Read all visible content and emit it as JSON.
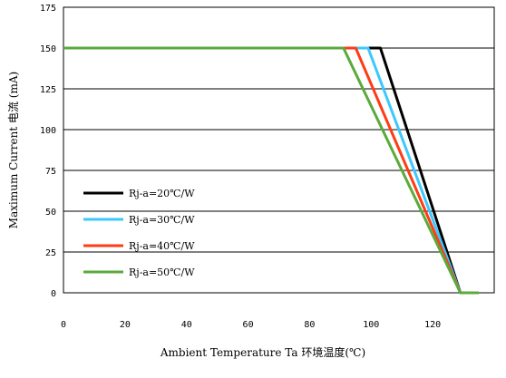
{
  "chart_data": {
    "type": "line",
    "xlabel": "Ambient Temperature Ta 环境温度(℃)",
    "ylabel": "Maximum Current 电流 (mA)",
    "xlim": [
      0,
      140
    ],
    "ylim": [
      0,
      175
    ],
    "xticks": [
      0,
      20,
      40,
      60,
      80,
      100,
      120
    ],
    "yticks": [
      0,
      25,
      50,
      75,
      100,
      125,
      150,
      175
    ],
    "grid": "horizontal",
    "legend_position": "lower-left",
    "series": [
      {
        "name": "Rj-a=20℃/W",
        "color": "#000000",
        "points": [
          [
            0,
            150
          ],
          [
            103,
            150
          ],
          [
            129,
            0
          ],
          [
            133,
            0
          ]
        ]
      },
      {
        "name": "Rj-a=30℃/W",
        "color": "#3cc8ff",
        "points": [
          [
            0,
            150
          ],
          [
            99,
            150
          ],
          [
            129,
            0
          ],
          [
            133,
            0
          ]
        ]
      },
      {
        "name": "Rj-a=40℃/W",
        "color": "#ff3c14",
        "points": [
          [
            0,
            150
          ],
          [
            95,
            150
          ],
          [
            129,
            0
          ],
          [
            133,
            0
          ]
        ]
      },
      {
        "name": "Rj-a=50℃/W",
        "color": "#5aaa3c",
        "points": [
          [
            0,
            150
          ],
          [
            91,
            150
          ],
          [
            129,
            0
          ],
          [
            135,
            0
          ]
        ]
      }
    ]
  }
}
